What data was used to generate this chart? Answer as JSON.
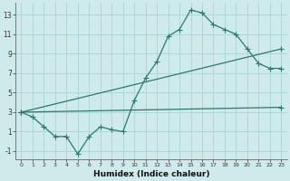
{
  "xlabel": "Humidex (Indice chaleur)",
  "background_color": "#ceeaea",
  "grid_color": "#a8d4d4",
  "line_color": "#2a7a6a",
  "xlim": [
    -0.5,
    23.5
  ],
  "ylim": [
    -1.8,
    14.2
  ],
  "xticks": [
    0,
    1,
    2,
    3,
    4,
    5,
    6,
    7,
    8,
    9,
    10,
    11,
    12,
    13,
    14,
    15,
    16,
    17,
    18,
    19,
    20,
    21,
    22,
    23
  ],
  "yticks": [
    -1,
    1,
    3,
    5,
    7,
    9,
    11,
    13
  ],
  "line1_x": [
    0,
    1,
    2,
    3,
    4,
    5,
    6,
    7,
    8,
    9,
    10,
    11,
    12,
    13,
    14,
    15,
    16,
    17,
    18,
    19,
    20,
    21,
    22,
    23
  ],
  "line1_y": [
    3.0,
    2.5,
    1.5,
    0.5,
    0.5,
    -1.3,
    0.5,
    1.5,
    1.2,
    1.0,
    4.2,
    6.5,
    8.2,
    10.8,
    11.5,
    13.5,
    13.2,
    12.0,
    11.5,
    11.0,
    9.5,
    8.0,
    7.5,
    7.5
  ],
  "line2_x": [
    0,
    23
  ],
  "line2_y": [
    3.0,
    3.5
  ],
  "line3_x": [
    0,
    23
  ],
  "line3_y": [
    3.0,
    9.5
  ]
}
